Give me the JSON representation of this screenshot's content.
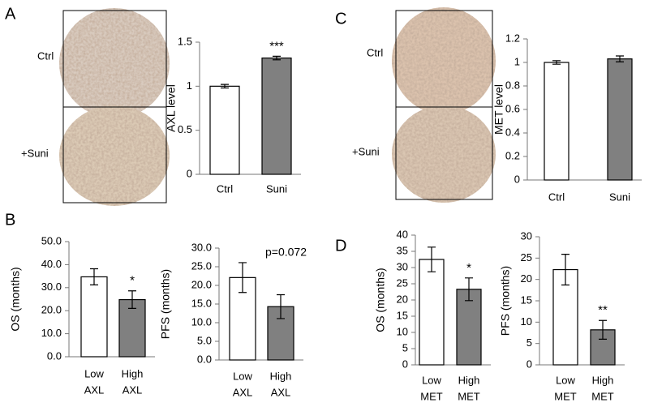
{
  "panels": [
    {
      "label": "A",
      "image_labels": [
        "Ctrl",
        "+Suni"
      ]
    },
    {
      "label": "B"
    },
    {
      "label": "C",
      "image_labels": [
        "Ctrl",
        "+Suni"
      ]
    },
    {
      "label": "D"
    }
  ],
  "chart_data": [
    {
      "type": "bar",
      "y_label": "AXL level",
      "categories": [
        [
          "Ctrl"
        ],
        [
          "Suni"
        ]
      ],
      "values": [
        1.0,
        1.32
      ],
      "errors": [
        0.02,
        0.02
      ],
      "significance": [
        null,
        "***"
      ],
      "colors": [
        "#ffffff",
        "#808080"
      ],
      "ylim": [
        0,
        1.5
      ],
      "yticks": [
        0,
        0.5,
        1,
        1.5
      ]
    },
    {
      "type": "bar",
      "y_label": "MET level",
      "categories": [
        [
          "Ctrl"
        ],
        [
          "Suni"
        ]
      ],
      "values": [
        1.0,
        1.03
      ],
      "errors": [
        0.015,
        0.025
      ],
      "significance": [
        null,
        null
      ],
      "colors": [
        "#ffffff",
        "#808080"
      ],
      "ylim": [
        0,
        1.2
      ],
      "yticks": [
        0,
        0.2,
        0.4,
        0.6,
        0.8,
        1,
        1.2
      ]
    },
    {
      "type": "bar",
      "y_label": "OS (months)",
      "categories": [
        [
          "Low",
          "AXL"
        ],
        [
          "High",
          "AXL"
        ]
      ],
      "values": [
        34.7,
        24.8
      ],
      "errors": [
        3.5,
        3.8
      ],
      "significance": [
        null,
        "*"
      ],
      "colors": [
        "#ffffff",
        "#808080"
      ],
      "ylim": [
        0,
        50
      ],
      "yticks": [
        {
          "value": 0,
          "label": "0.0"
        },
        {
          "value": 10,
          "label": "10.0"
        },
        {
          "value": 20,
          "label": "20.0"
        },
        {
          "value": 30,
          "label": "30.0"
        },
        {
          "value": 40,
          "label": "40.0"
        },
        {
          "value": 50,
          "label": "50.0"
        }
      ]
    },
    {
      "type": "bar",
      "y_label": "PFS (months)",
      "categories": [
        [
          "Low",
          "AXL"
        ],
        [
          "High",
          "AXL"
        ]
      ],
      "values": [
        22.1,
        14.3
      ],
      "errors": [
        4.0,
        3.2
      ],
      "significance": [
        null,
        null
      ],
      "annotation": "p=0.072",
      "colors": [
        "#ffffff",
        "#808080"
      ],
      "ylim": [
        0,
        30
      ],
      "yticks": [
        {
          "value": 0,
          "label": "0.0"
        },
        {
          "value": 5,
          "label": "5.0"
        },
        {
          "value": 10,
          "label": "10.0"
        },
        {
          "value": 15,
          "label": "15.0"
        },
        {
          "value": 20,
          "label": "20.0"
        },
        {
          "value": 25,
          "label": "25.0"
        },
        {
          "value": 30,
          "label": "30.0"
        }
      ]
    },
    {
      "type": "bar",
      "y_label": "OS (months)",
      "categories": [
        [
          "Low",
          "MET"
        ],
        [
          "High",
          "MET"
        ]
      ],
      "values": [
        32.5,
        23.3
      ],
      "errors": [
        3.8,
        3.5
      ],
      "significance": [
        null,
        "*"
      ],
      "colors": [
        "#ffffff",
        "#808080"
      ],
      "ylim": [
        0,
        40
      ],
      "yticks": [
        0,
        5,
        10,
        15,
        20,
        25,
        30,
        35,
        40
      ]
    },
    {
      "type": "bar",
      "y_label": "PFS (months)",
      "categories": [
        [
          "Low",
          "MET"
        ],
        [
          "High",
          "MET"
        ]
      ],
      "values": [
        22.3,
        8.2
      ],
      "errors": [
        3.6,
        2.2
      ],
      "significance": [
        null,
        "**"
      ],
      "colors": [
        "#ffffff",
        "#808080"
      ],
      "ylim": [
        0,
        30
      ],
      "yticks": [
        0,
        5,
        10,
        15,
        20,
        25,
        30
      ]
    }
  ]
}
